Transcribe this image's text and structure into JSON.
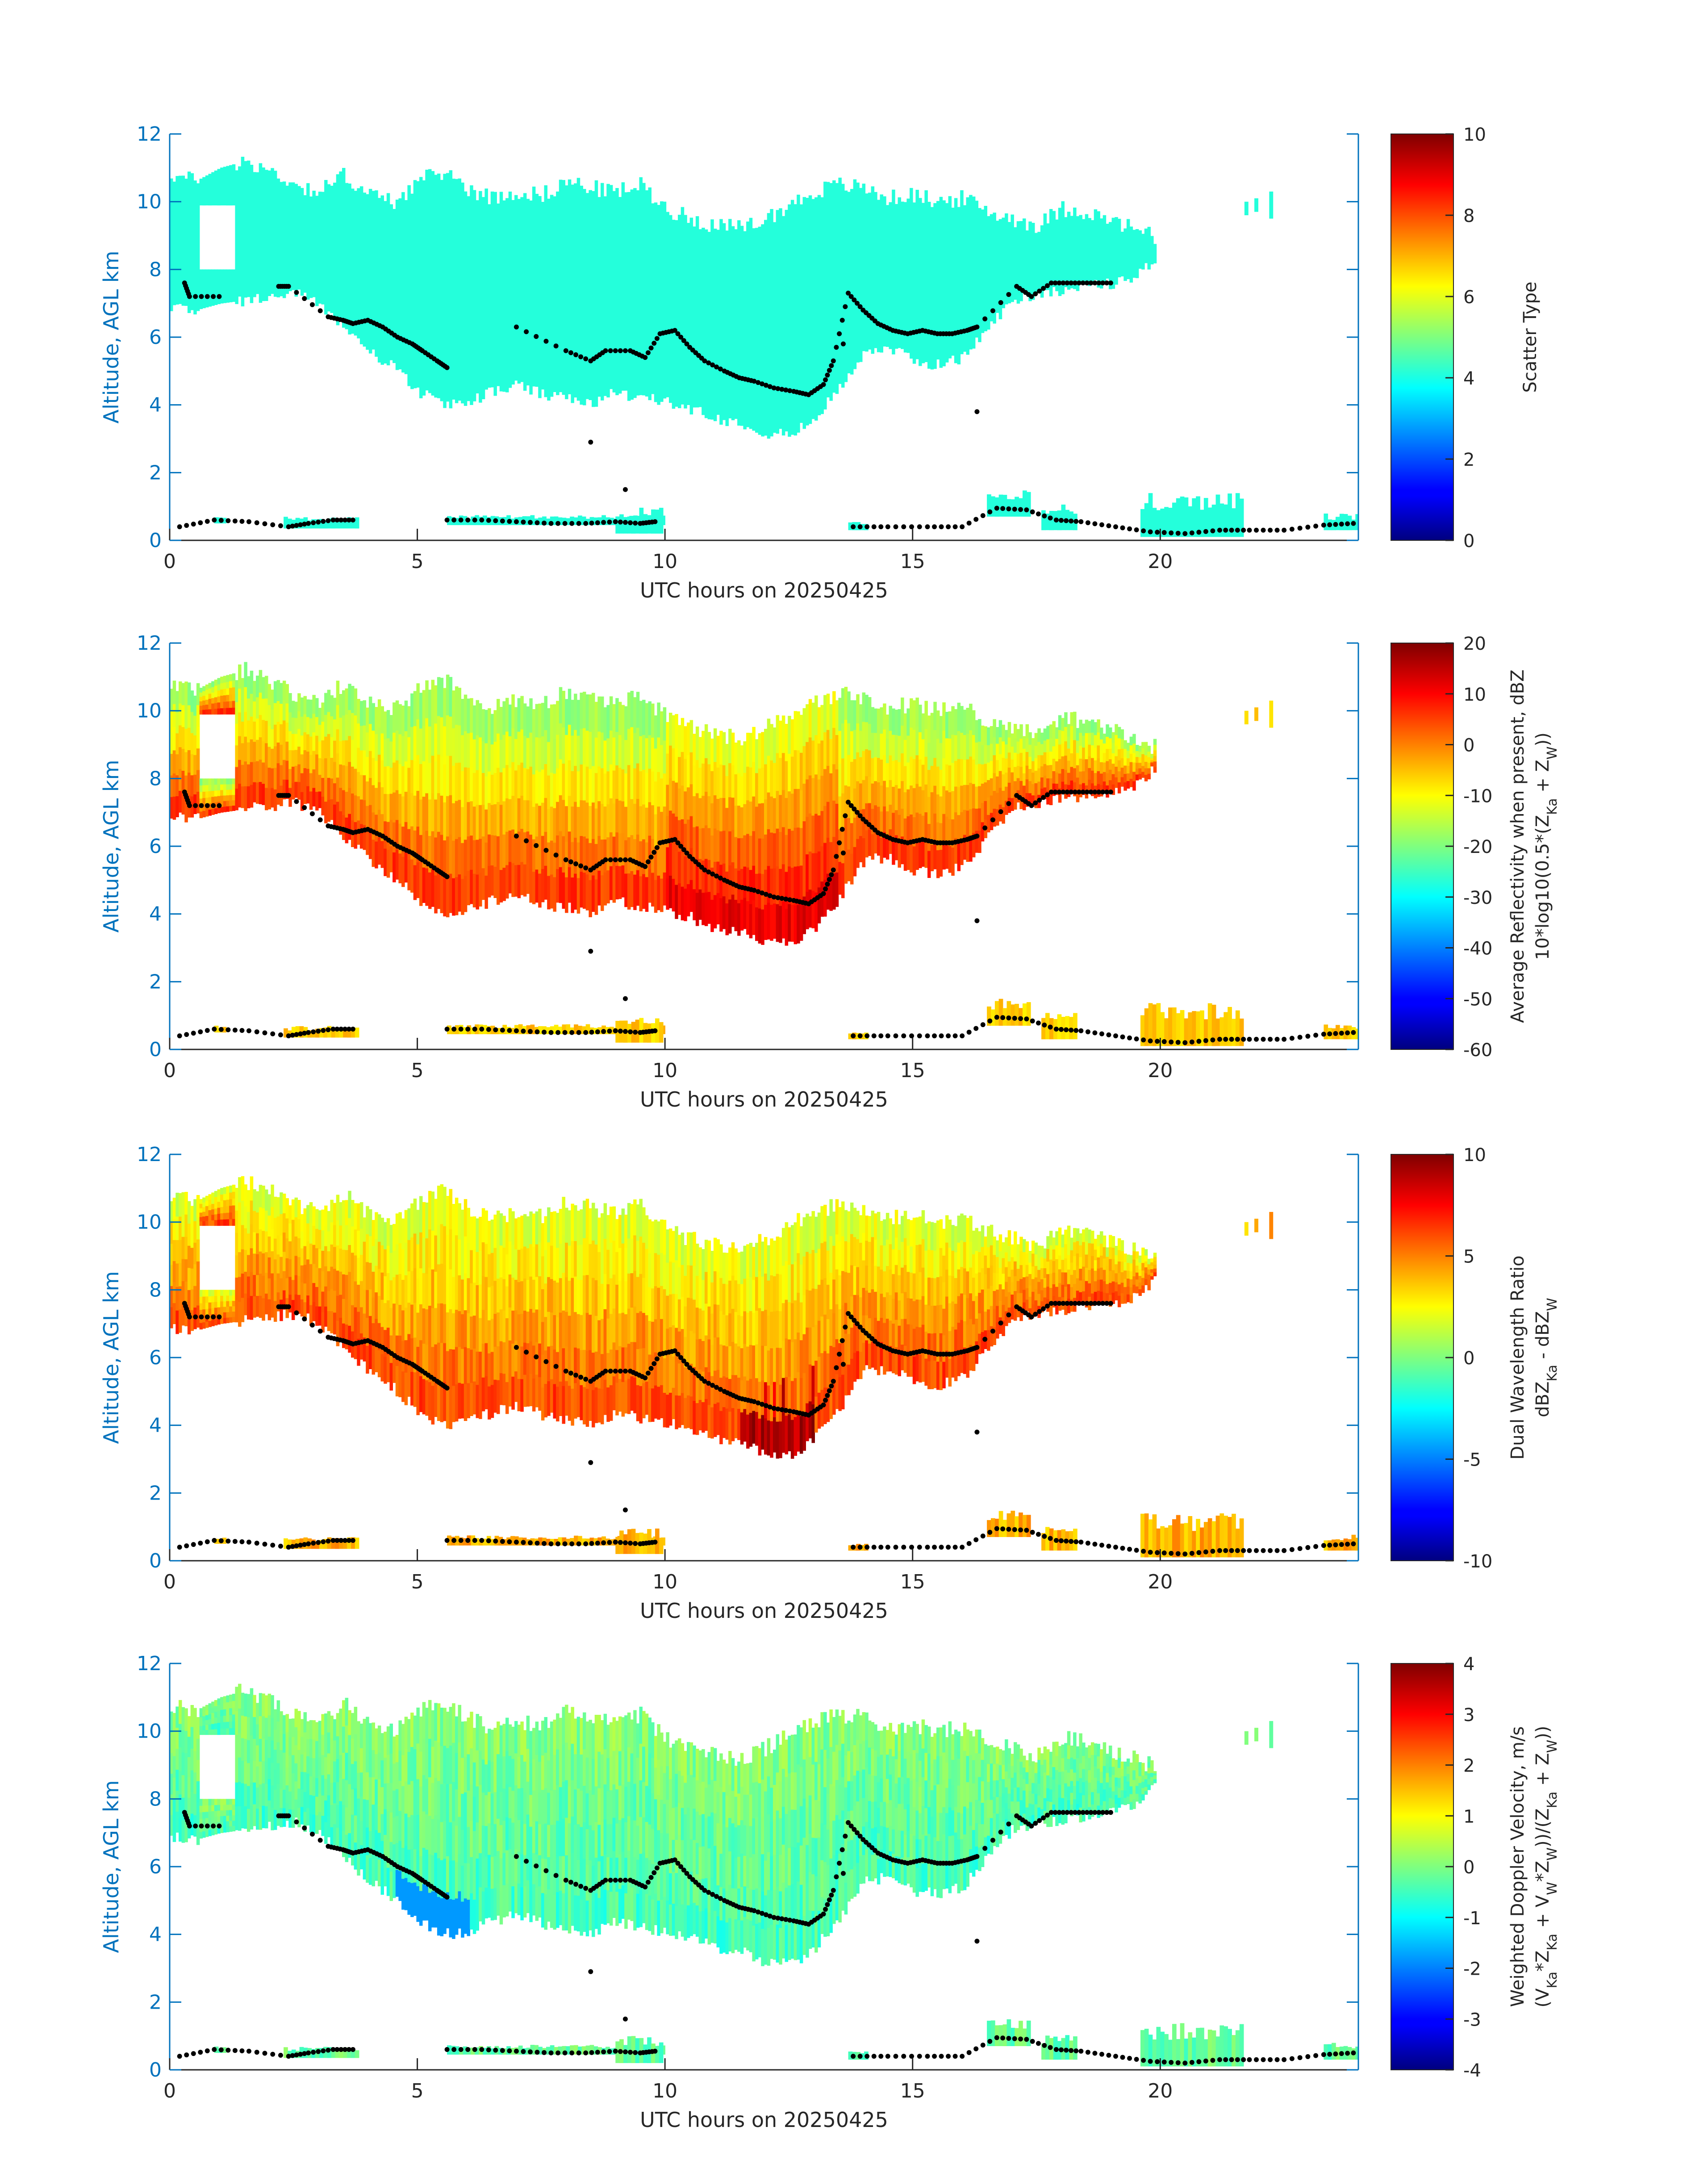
{
  "figure": {
    "date_label": "20250425",
    "axis_color": "#0072bd"
  },
  "chart_data": [
    {
      "type": "heatmap",
      "xlabel": "UTC hours on 20250425",
      "ylabel": "Altitude, AGL km",
      "xlim": [
        0,
        24
      ],
      "ylim": [
        0,
        12
      ],
      "xticks": [
        0,
        5,
        10,
        15,
        20
      ],
      "yticks": [
        0,
        2,
        4,
        6,
        8,
        10,
        12
      ],
      "colorbar": {
        "label_lines": [
          "Scatter Type"
        ],
        "range": [
          0,
          10
        ],
        "ticks": [
          0,
          2,
          4,
          6,
          8,
          10
        ],
        "colormap": "jet"
      },
      "fill_value": 4.1,
      "fill_variation": "uniform"
    },
    {
      "type": "heatmap",
      "xlabel": "UTC hours on 20250425",
      "ylabel": "Altitude, AGL km",
      "xlim": [
        0,
        24
      ],
      "ylim": [
        0,
        12
      ],
      "xticks": [
        0,
        5,
        10,
        15,
        20
      ],
      "yticks": [
        0,
        2,
        4,
        6,
        8,
        10,
        12
      ],
      "colorbar": {
        "label_lines": [
          "Average Reflectivity when present, dBZ",
          "10*log10(0.5*(Z_Ka + Z_W))"
        ],
        "range": [
          -60,
          20
        ],
        "ticks": [
          -60,
          -50,
          -40,
          -30,
          -20,
          -10,
          0,
          10,
          20
        ],
        "colormap": "jet"
      },
      "fill_value": -8,
      "fill_variation": "reflectivity"
    },
    {
      "type": "heatmap",
      "xlabel": "UTC hours on 20250425",
      "ylabel": "Altitude, AGL km",
      "xlim": [
        0,
        24
      ],
      "ylim": [
        0,
        12
      ],
      "xticks": [
        0,
        5,
        10,
        15,
        20
      ],
      "yticks": [
        0,
        2,
        4,
        6,
        8,
        10,
        12
      ],
      "colorbar": {
        "label_lines": [
          "Dual Wavelength Ratio",
          "dBZ_Ka - dBZ_W"
        ],
        "range": [
          -10,
          10
        ],
        "ticks": [
          -10,
          -5,
          0,
          5,
          10
        ],
        "colormap": "jet"
      },
      "fill_value": 4,
      "fill_variation": "dwr"
    },
    {
      "type": "heatmap",
      "xlabel": "UTC hours on 20250425",
      "ylabel": "Altitude, AGL km",
      "xlim": [
        0,
        24
      ],
      "ylim": [
        0,
        12
      ],
      "xticks": [
        0,
        5,
        10,
        15,
        20
      ],
      "yticks": [
        0,
        2,
        4,
        6,
        8,
        10,
        12
      ],
      "colorbar": {
        "label_lines": [
          "Weighted Doppler Velocity, m/s",
          "(V_Ka*Z_Ka + V_W*Z_W))/(Z_Ka + Z_W))"
        ],
        "range": [
          -4,
          4
        ],
        "ticks": [
          -4,
          -3,
          -2,
          -1,
          0,
          1,
          2,
          3,
          4
        ],
        "colormap": "jet"
      },
      "fill_value": -0.3,
      "fill_variation": "velocity"
    }
  ],
  "echo_layer_km": {
    "hours": [
      0.0,
      0.5,
      1.0,
      1.5,
      2.0,
      2.5,
      3.0,
      3.5,
      4.0,
      4.5,
      5.0,
      5.5,
      6.0,
      6.5,
      7.0,
      7.5,
      8.0,
      8.5,
      9.0,
      9.5,
      10.0,
      10.5,
      11.0,
      11.5,
      12.0,
      12.5,
      13.0,
      13.5,
      14.0,
      14.5,
      15.0,
      15.5,
      16.0,
      16.5,
      17.0,
      17.5,
      18.0,
      18.5,
      19.0,
      19.5,
      19.9
    ],
    "top": [
      10.8,
      10.6,
      11.0,
      11.2,
      10.9,
      10.5,
      10.3,
      10.8,
      10.2,
      10.0,
      10.6,
      10.9,
      10.4,
      10.1,
      10.3,
      10.2,
      10.6,
      10.4,
      10.3,
      10.5,
      9.8,
      9.5,
      9.3,
      9.2,
      9.5,
      9.9,
      10.3,
      10.5,
      10.4,
      10.1,
      10.2,
      10.0,
      10.1,
      9.7,
      9.5,
      9.3,
      9.8,
      9.7,
      9.4,
      9.2,
      8.9
    ],
    "bottom": [
      6.9,
      6.8,
      7.0,
      7.1,
      7.2,
      7.3,
      7.0,
      6.3,
      5.6,
      5.1,
      4.4,
      4.0,
      4.1,
      4.4,
      4.6,
      4.3,
      4.2,
      4.0,
      4.4,
      4.2,
      4.1,
      3.9,
      3.6,
      3.5,
      3.2,
      3.1,
      3.6,
      4.5,
      5.6,
      5.7,
      5.3,
      5.2,
      5.4,
      6.3,
      7.1,
      7.3,
      7.4,
      7.5,
      7.6,
      7.8,
      8.4
    ],
    "gap_hours": [
      0.55,
      1.3
    ],
    "gap_bottom": 8.0,
    "gap_top": 9.9
  },
  "markers": {
    "upper": [
      [
        0.3,
        7.6
      ],
      [
        0.4,
        7.2
      ],
      [
        1.0,
        7.2
      ],
      [
        2.2,
        7.5
      ],
      [
        2.4,
        7.5
      ],
      [
        3.2,
        6.6
      ],
      [
        3.5,
        6.5
      ],
      [
        3.7,
        6.4
      ],
      [
        4.0,
        6.5
      ],
      [
        4.3,
        6.3
      ],
      [
        4.6,
        6.0
      ],
      [
        4.9,
        5.8
      ],
      [
        5.1,
        5.6
      ],
      [
        5.4,
        5.3
      ],
      [
        5.6,
        5.1
      ],
      [
        7.0,
        6.3
      ],
      [
        8.0,
        5.6
      ],
      [
        8.5,
        5.3
      ],
      [
        8.8,
        5.6
      ],
      [
        9.3,
        5.6
      ],
      [
        9.6,
        5.4
      ],
      [
        9.9,
        6.1
      ],
      [
        10.2,
        6.2
      ],
      [
        10.5,
        5.7
      ],
      [
        10.8,
        5.3
      ],
      [
        11.2,
        5.0
      ],
      [
        11.5,
        4.8
      ],
      [
        11.8,
        4.7
      ],
      [
        12.2,
        4.5
      ],
      [
        12.6,
        4.4
      ],
      [
        12.9,
        4.3
      ],
      [
        13.2,
        4.6
      ],
      [
        13.4,
        5.3
      ],
      [
        13.7,
        7.3
      ],
      [
        14.0,
        6.8
      ],
      [
        14.3,
        6.4
      ],
      [
        14.6,
        6.2
      ],
      [
        14.9,
        6.1
      ],
      [
        15.2,
        6.2
      ],
      [
        15.5,
        6.1
      ],
      [
        15.8,
        6.1
      ],
      [
        16.1,
        6.2
      ],
      [
        16.3,
        6.3
      ],
      [
        17.1,
        7.5
      ],
      [
        17.4,
        7.2
      ],
      [
        17.8,
        7.6
      ],
      [
        18.2,
        7.6
      ],
      [
        18.6,
        7.6
      ],
      [
        19.0,
        7.6
      ]
    ],
    "lower": [
      [
        0.2,
        0.4
      ],
      [
        0.9,
        0.6
      ],
      [
        1.6,
        0.55
      ],
      [
        2.4,
        0.4
      ],
      [
        2.8,
        0.5
      ],
      [
        3.3,
        0.6
      ],
      [
        3.7,
        0.6
      ],
      [
        5.6,
        0.6
      ],
      [
        6.3,
        0.6
      ],
      [
        7.0,
        0.55
      ],
      [
        7.7,
        0.5
      ],
      [
        8.4,
        0.5
      ],
      [
        9.0,
        0.55
      ],
      [
        9.5,
        0.5
      ],
      [
        9.8,
        0.55
      ],
      [
        13.8,
        0.4
      ],
      [
        14.5,
        0.4
      ],
      [
        15.3,
        0.4
      ],
      [
        16.0,
        0.4
      ],
      [
        16.7,
        0.95
      ],
      [
        17.3,
        0.9
      ],
      [
        17.9,
        0.6
      ],
      [
        18.4,
        0.55
      ],
      [
        19.1,
        0.4
      ],
      [
        19.8,
        0.25
      ],
      [
        20.5,
        0.2
      ],
      [
        21.2,
        0.3
      ],
      [
        21.8,
        0.3
      ],
      [
        22.5,
        0.3
      ],
      [
        23.3,
        0.45
      ],
      [
        23.9,
        0.5
      ]
    ],
    "isolated": [
      [
        8.5,
        2.9
      ],
      [
        16.3,
        3.8
      ],
      [
        9.2,
        1.5
      ],
      [
        13.6,
        5.8
      ]
    ]
  }
}
